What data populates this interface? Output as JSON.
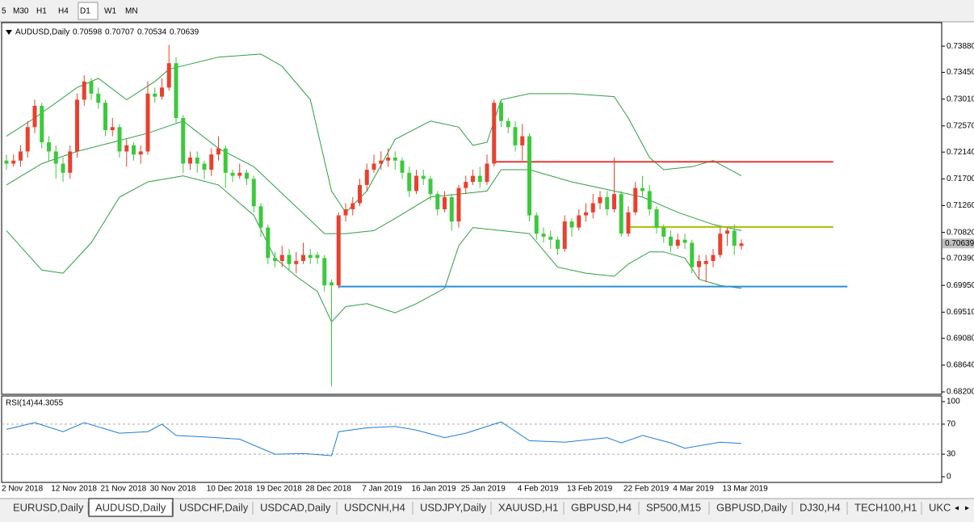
{
  "toolbar": {
    "timeframes": [
      "5",
      "M30",
      "H1",
      "H4",
      "D1",
      "W1",
      "MN"
    ],
    "active": "D1"
  },
  "chart_data": {
    "type": "candlestick",
    "title": "AUDUSD,Daily",
    "ohlc": [
      0.70598,
      0.70707,
      0.70534,
      0.70639
    ],
    "up_color": "#e8412e",
    "down_color": "#3cc93c",
    "categories": [
      "2 Nov 2018",
      null,
      null,
      null,
      null,
      null,
      null,
      "12 Nov 2018",
      null,
      null,
      null,
      null,
      null,
      null,
      "21 Nov 2018",
      null,
      null,
      null,
      null,
      null,
      null,
      "30 Nov 2018",
      null,
      null,
      null,
      null,
      null,
      null,
      null,
      "10 Dec 2018",
      null,
      null,
      null,
      null,
      null,
      null,
      "19 Dec 2018",
      null,
      null,
      null,
      null,
      null,
      null,
      "28 Dec 2018",
      null,
      null,
      null,
      null,
      null,
      null,
      null,
      "7 Jan 2019",
      null,
      null,
      null,
      null,
      null,
      null,
      "16 Jan 2019",
      null,
      null,
      null,
      null,
      null,
      null,
      "25 Jan 2019",
      null,
      null,
      null,
      null,
      null,
      null,
      null,
      "4 Feb 2019",
      null,
      null,
      null,
      null,
      null,
      null,
      "13 Feb 2019",
      null,
      null,
      null,
      null,
      null,
      null,
      null,
      "22 Feb 2019",
      null,
      null,
      null,
      null,
      null,
      null,
      "4 Mar 2019",
      null,
      null,
      null,
      null,
      null,
      null,
      "13 Mar 2019",
      null,
      null
    ],
    "open": [
      0.72,
      0.7195,
      0.72,
      0.7215,
      0.7255,
      0.729,
      0.723,
      0.7215,
      0.7195,
      0.718,
      0.7215,
      0.73,
      0.733,
      0.731,
      0.7295,
      0.725,
      0.7255,
      0.7215,
      0.7225,
      0.721,
      0.7215,
      0.731,
      0.7305,
      0.732,
      0.736,
      0.727,
      0.7195,
      0.7205,
      0.7195,
      0.7185,
      0.721,
      0.722,
      0.718,
      0.7175,
      0.718,
      0.717,
      0.7125,
      0.709,
      0.704,
      0.7035,
      0.7045,
      0.703,
      0.7035,
      0.7045,
      0.7045,
      0.704,
      0.7,
      0.6995,
      0.711,
      0.712,
      0.713,
      0.716,
      0.7185,
      0.7195,
      0.72,
      0.7205,
      0.72,
      0.718,
      0.715,
      0.7175,
      0.717,
      0.7145,
      0.712,
      0.714,
      0.71,
      0.7155,
      0.7165,
      0.7175,
      0.7165,
      0.7195,
      0.7295,
      0.7265,
      0.7255,
      0.7225,
      0.724,
      0.711,
      0.708,
      0.7075,
      0.707,
      0.7055,
      0.71,
      0.709,
      0.711,
      0.7115,
      0.713,
      0.714,
      0.712,
      0.7145,
      0.708,
      0.7115,
      0.7155,
      0.715,
      0.712,
      0.709,
      0.7075,
      0.706,
      0.707,
      0.7065,
      0.7025,
      0.703,
      0.7035,
      0.7045,
      0.708,
      0.7085,
      0.70598
    ],
    "high": [
      0.721,
      0.721,
      0.7225,
      0.7265,
      0.73,
      0.7295,
      0.724,
      0.7225,
      0.7205,
      0.7225,
      0.731,
      0.734,
      0.7335,
      0.732,
      0.73,
      0.727,
      0.726,
      0.7235,
      0.723,
      0.7225,
      0.733,
      0.732,
      0.7335,
      0.739,
      0.737,
      0.7275,
      0.7215,
      0.7215,
      0.72,
      0.722,
      0.724,
      0.7225,
      0.7185,
      0.7195,
      0.7185,
      0.7175,
      0.713,
      0.7095,
      0.705,
      0.706,
      0.7055,
      0.705,
      0.7065,
      0.7055,
      0.705,
      0.7045,
      0.7005,
      0.7115,
      0.713,
      0.714,
      0.717,
      0.7195,
      0.721,
      0.7215,
      0.722,
      0.7215,
      0.7205,
      0.719,
      0.7185,
      0.7185,
      0.7175,
      0.715,
      0.715,
      0.7145,
      0.716,
      0.7175,
      0.7185,
      0.719,
      0.721,
      0.73,
      0.73,
      0.727,
      0.7265,
      0.726,
      0.7245,
      0.7115,
      0.709,
      0.7085,
      0.7075,
      0.711,
      0.7105,
      0.712,
      0.713,
      0.7145,
      0.715,
      0.715,
      0.7205,
      0.715,
      0.7125,
      0.7165,
      0.7175,
      0.716,
      0.7125,
      0.7095,
      0.7085,
      0.708,
      0.708,
      0.707,
      0.7045,
      0.7045,
      0.7055,
      0.709,
      0.709,
      0.7095,
      0.70707
    ],
    "low": [
      0.7185,
      0.719,
      0.719,
      0.7205,
      0.7245,
      0.722,
      0.72,
      0.717,
      0.7165,
      0.717,
      0.7205,
      0.729,
      0.73,
      0.7285,
      0.724,
      0.724,
      0.7205,
      0.719,
      0.72,
      0.7195,
      0.721,
      0.7295,
      0.73,
      0.7315,
      0.726,
      0.718,
      0.7185,
      0.718,
      0.717,
      0.7175,
      0.72,
      0.7155,
      0.7165,
      0.717,
      0.716,
      0.7115,
      0.7075,
      0.703,
      0.7025,
      0.7025,
      0.702,
      0.7015,
      0.703,
      0.703,
      0.703,
      0.6985,
      0.6829,
      0.699,
      0.71,
      0.711,
      0.7125,
      0.715,
      0.718,
      0.7185,
      0.719,
      0.7185,
      0.717,
      0.714,
      0.7145,
      0.716,
      0.7135,
      0.711,
      0.7115,
      0.7085,
      0.709,
      0.7145,
      0.716,
      0.7155,
      0.716,
      0.719,
      0.7255,
      0.7245,
      0.7215,
      0.72,
      0.71,
      0.707,
      0.7065,
      0.7055,
      0.7045,
      0.705,
      0.7075,
      0.7085,
      0.71,
      0.7105,
      0.712,
      0.711,
      0.7115,
      0.7075,
      0.7075,
      0.711,
      0.714,
      0.711,
      0.708,
      0.7065,
      0.705,
      0.7055,
      0.7055,
      0.7015,
      0.7005,
      0.7,
      0.7025,
      0.704,
      0.706,
      0.7045,
      0.70534
    ],
    "close": [
      0.7195,
      0.72,
      0.7215,
      0.7255,
      0.729,
      0.723,
      0.7215,
      0.7195,
      0.718,
      0.7215,
      0.73,
      0.733,
      0.731,
      0.7295,
      0.725,
      0.7255,
      0.7215,
      0.7225,
      0.721,
      0.7215,
      0.731,
      0.7305,
      0.732,
      0.736,
      0.727,
      0.7195,
      0.7205,
      0.7195,
      0.7185,
      0.721,
      0.722,
      0.718,
      0.7175,
      0.718,
      0.717,
      0.7125,
      0.709,
      0.704,
      0.7035,
      0.7045,
      0.703,
      0.7035,
      0.7045,
      0.704,
      0.704,
      0.6995,
      0.6995,
      0.711,
      0.712,
      0.713,
      0.716,
      0.7185,
      0.7195,
      0.72,
      0.7205,
      0.72,
      0.718,
      0.715,
      0.7175,
      0.717,
      0.7145,
      0.712,
      0.714,
      0.71,
      0.7155,
      0.7165,
      0.7175,
      0.7165,
      0.7195,
      0.7295,
      0.7265,
      0.7255,
      0.7225,
      0.724,
      0.711,
      0.708,
      0.7075,
      0.707,
      0.7055,
      0.71,
      0.709,
      0.711,
      0.7115,
      0.713,
      0.714,
      0.712,
      0.7145,
      0.708,
      0.7115,
      0.7155,
      0.715,
      0.712,
      0.709,
      0.7075,
      0.706,
      0.707,
      0.7065,
      0.7025,
      0.7035,
      0.7035,
      0.7045,
      0.708,
      0.7085,
      0.706,
      0.70639
    ],
    "ylim": [
      0.6816,
      0.7424
    ],
    "yticks": [
      {
        "value": 0.7388,
        "label": "0.73880"
      },
      {
        "value": 0.7345,
        "label": "0.73450"
      },
      {
        "value": 0.7301,
        "label": "0.73010"
      },
      {
        "value": 0.7257,
        "label": "0.72570"
      },
      {
        "value": 0.7214,
        "label": "0.72140"
      },
      {
        "value": 0.717,
        "label": "0.71700"
      },
      {
        "value": 0.7126,
        "label": "0.71260"
      },
      {
        "value": 0.7082,
        "label": "0.70820"
      },
      {
        "value": 0.7039,
        "label": "0.70390"
      },
      {
        "value": 0.6995,
        "label": "0.69950"
      },
      {
        "value": 0.6951,
        "label": "0.69510"
      },
      {
        "value": 0.6908,
        "label": "0.69080"
      },
      {
        "value": 0.6864,
        "label": "0.68640"
      },
      {
        "value": 0.682,
        "label": "0.68200"
      }
    ],
    "bands": [
      {
        "color": "#2e9e46",
        "x": [
          0,
          4,
          10,
          13,
          17,
          21,
          23,
          30,
          36,
          39,
          43,
          46,
          48,
          51,
          55,
          60,
          64,
          66,
          68,
          70,
          74,
          80,
          86,
          88,
          91,
          93,
          97,
          100,
          104
        ],
        "values": [
          0.724,
          0.727,
          0.732,
          0.7335,
          0.73,
          0.733,
          0.735,
          0.737,
          0.7375,
          0.7355,
          0.73,
          0.715,
          0.7115,
          0.715,
          0.7235,
          0.7265,
          0.7255,
          0.7225,
          0.723,
          0.73,
          0.731,
          0.731,
          0.7305,
          0.727,
          0.7205,
          0.7185,
          0.719,
          0.72,
          0.7175
        ]
      },
      {
        "color": "#2e9e46",
        "x": [
          0,
          5,
          10,
          15,
          20,
          25,
          30,
          35,
          40,
          45,
          48,
          52,
          55,
          60,
          64,
          68,
          70,
          74,
          80,
          86,
          90,
          95,
          100,
          104
        ],
        "values": [
          0.716,
          0.7195,
          0.7215,
          0.723,
          0.7245,
          0.7265,
          0.722,
          0.719,
          0.7135,
          0.708,
          0.708,
          0.7085,
          0.7105,
          0.714,
          0.7145,
          0.715,
          0.7185,
          0.7185,
          0.7165,
          0.715,
          0.714,
          0.7115,
          0.7095,
          0.7085
        ]
      },
      {
        "color": "#2e9e46",
        "x": [
          0,
          5,
          8,
          12,
          16,
          20,
          25,
          30,
          35,
          38,
          41,
          44,
          46,
          48,
          51,
          55,
          58,
          62,
          64,
          66,
          70,
          74,
          78,
          82,
          86,
          88,
          91,
          93,
          96,
          98,
          101,
          104
        ],
        "values": [
          0.7085,
          0.702,
          0.7015,
          0.7065,
          0.714,
          0.7165,
          0.7175,
          0.716,
          0.711,
          0.704,
          0.701,
          0.6985,
          0.6935,
          0.696,
          0.6965,
          0.695,
          0.6965,
          0.699,
          0.706,
          0.709,
          0.7085,
          0.708,
          0.7025,
          0.7015,
          0.701,
          0.703,
          0.705,
          0.705,
          0.704,
          0.7005,
          0.6995,
          0.699
        ]
      }
    ],
    "levels": [
      {
        "value": 0.7198,
        "color": "#e53935",
        "x": [
          69,
          117
        ]
      },
      {
        "value": 0.7091,
        "color": "#a8c000",
        "x": [
          88,
          117
        ]
      },
      {
        "value": 0.6993,
        "color": "#2a8fd8",
        "x": [
          47,
          119
        ]
      }
    ],
    "indicator": {
      "label": "RSI(14)",
      "value": 44.3055,
      "color": "#1e7fd6",
      "x": [
        0,
        4,
        8,
        11,
        16,
        20,
        22,
        24,
        28,
        33,
        38,
        42,
        46,
        47,
        51,
        55,
        58,
        62,
        65,
        70,
        74,
        79,
        85,
        87,
        90,
        94,
        96,
        101,
        104
      ],
      "values": [
        63,
        72,
        60,
        72,
        58,
        60,
        70,
        55,
        53,
        50,
        30,
        31,
        28,
        60,
        65,
        67,
        62,
        52,
        58,
        73,
        48,
        46,
        52,
        45,
        55,
        45,
        38,
        46,
        44.3055
      ],
      "ylim": [
        0,
        100
      ],
      "yticks": [
        100,
        70,
        30,
        0
      ],
      "levels": [
        70,
        30
      ]
    }
  },
  "tabs": {
    "items": [
      "EURUSD,Daily",
      "AUDUSD,Daily",
      "USDCHF,Daily",
      "USDCAD,Daily",
      "USDCNH,H4",
      "USDJPY,Daily",
      "XAUUSD,H1",
      "GBPUSD,H4",
      "SP500,M15",
      "GBPUSD,Daily",
      "DJ30,H4",
      "TECH100,H1",
      "UKC"
    ],
    "active": "AUDUSD,Daily"
  }
}
